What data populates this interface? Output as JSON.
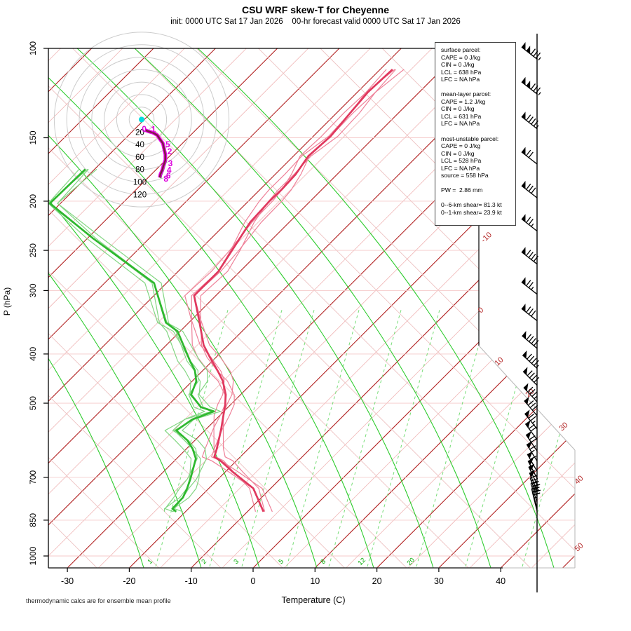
{
  "header": {
    "title": "CSU WRF skew-T for Cheyenne",
    "subtitle": "init: 0000 UTC Sat 17 Jan 2026    00-hr forecast valid 0000 UTC Sat 17 Jan 2026"
  },
  "footer": {
    "note": "thermodynamic calcs are for ensemble mean profile",
    "xlabel": "Temperature (C)"
  },
  "axes": {
    "ylabel": "P (hPa)",
    "pressure_ticks": [
      100,
      150,
      200,
      250,
      300,
      400,
      500,
      700,
      850,
      1000
    ],
    "temp_ticks": [
      -30,
      -20,
      -10,
      0,
      10,
      20,
      30,
      40
    ],
    "isotherm_edge_labels": [
      "-10",
      "0",
      "10",
      "20",
      "30",
      "40",
      "50"
    ],
    "mixing_ratio_labels": [
      "1",
      "2",
      "3",
      "5",
      "8",
      "12",
      "20"
    ]
  },
  "parcel_info": {
    "lines": [
      "surface parcel:",
      "CAPE = 0 J/kg",
      "CIN = 0 J/kg",
      "LCL = 638 hPa",
      "LFC = NA hPa",
      "",
      "mean-layer parcel:",
      "CAPE = 1.2 J/kg",
      "CIN = 0 J/kg",
      "LCL = 631 hPa",
      "LFC = NA hPa",
      "",
      "most-unstable parcel:",
      "CAPE = 0 J/kg",
      "CIN = 0 J/kg",
      "LCL = 528 hPa",
      "LFC = NA hPa",
      "source = 558 hPa",
      "",
      "PW =  2.86 mm",
      "",
      "0--6-km shear= 81.3 kt",
      "0--1-km shear= 23.9 kt"
    ]
  },
  "colors": {
    "isotherm": "#b22222",
    "isotherm_minor": "#f0b6b6",
    "dry_adiabat": "#edc2c2",
    "pressure_line": "#f5caca",
    "moist_adiabat": "#2ecc2e",
    "mixing_ratio": "#77dd77",
    "mixing_label": "#00aa00",
    "temperature": "#e0385e",
    "temperature_member": "#ee8098",
    "dewpoint": "#2eb82e",
    "dewpoint_member": "#82d682",
    "hodograph_ring": "#cccccc",
    "hodograph_trace": "#e800e8",
    "hodograph_core": "#7a1f3d",
    "hodograph_label": "#dd00dd",
    "origin_dot": "#00dddd",
    "barb": "#000000",
    "border": "#000000",
    "border_ext": "#bbbbbb"
  },
  "chart_data": {
    "type": "line",
    "subtype": "skew-T log-P sounding",
    "title": "CSU WRF skew-T for Cheyenne",
    "xlabel": "Temperature (C)",
    "ylabel": "P (hPa)",
    "x_range_c": [
      -38,
      46
    ],
    "pressure_range_hpa": [
      100,
      1050
    ],
    "ensemble_members": 5,
    "series": [
      {
        "name": "temperature",
        "units": [
          "hPa",
          "C"
        ],
        "points": [
          [
            110,
            -58
          ],
          [
            122,
            -58.3
          ],
          [
            134,
            -57.8
          ],
          [
            149,
            -57.2
          ],
          [
            163,
            -57.6
          ],
          [
            177,
            -56.7
          ],
          [
            190,
            -56.5
          ],
          [
            200,
            -56.6
          ],
          [
            220,
            -56.3
          ],
          [
            250,
            -54.7
          ],
          [
            275,
            -53.5
          ],
          [
            307,
            -53.5
          ],
          [
            341,
            -49
          ],
          [
            384,
            -44
          ],
          [
            406,
            -41
          ],
          [
            433,
            -37.4
          ],
          [
            452,
            -35.1
          ],
          [
            481,
            -32.4
          ],
          [
            503,
            -30.9
          ],
          [
            529,
            -29.4
          ],
          [
            562,
            -27.6
          ],
          [
            615,
            -25.1
          ],
          [
            638,
            -24.2
          ],
          [
            649,
            -22.6
          ],
          [
            682,
            -18.9
          ],
          [
            736,
            -12.8
          ],
          [
            818,
            -7.4
          ]
        ]
      },
      {
        "name": "dewpoint",
        "units": [
          "hPa",
          "C"
        ],
        "points": [
          [
            173,
            -91.5
          ],
          [
            202,
            -91.7
          ],
          [
            237,
            -79
          ],
          [
            290,
            -62
          ],
          [
            347,
            -53.7
          ],
          [
            361,
            -50.4
          ],
          [
            413,
            -43.6
          ],
          [
            431,
            -41.3
          ],
          [
            453,
            -39.3
          ],
          [
            481,
            -38
          ],
          [
            509,
            -34.4
          ],
          [
            519,
            -31.6
          ],
          [
            538,
            -33.8
          ],
          [
            566,
            -34.6
          ],
          [
            592,
            -31.2
          ],
          [
            615,
            -29
          ],
          [
            643,
            -26.9
          ],
          [
            705,
            -24.5
          ],
          [
            736,
            -23.5
          ],
          [
            767,
            -22.7
          ],
          [
            807,
            -22.6
          ],
          [
            818,
            -21.5
          ]
        ]
      }
    ],
    "hodograph": {
      "ring_interval_kt": 20,
      "ring_labels": [
        "20",
        "40",
        "60",
        "80",
        "100",
        "120"
      ],
      "rings_kt": [
        20,
        40,
        60,
        80,
        100,
        120,
        140
      ],
      "trace_uv_kt": [
        [
          6,
          -17
        ],
        [
          11,
          -19
        ],
        [
          18,
          -21
        ],
        [
          25,
          -25
        ],
        [
          29,
          -31
        ],
        [
          34,
          -38
        ],
        [
          36,
          -47
        ],
        [
          38,
          -56
        ],
        [
          38,
          -65
        ],
        [
          35,
          -74
        ],
        [
          33,
          -81
        ],
        [
          30,
          -88
        ],
        [
          29,
          -93
        ]
      ],
      "height_labels": [
        {
          "km": "0",
          "uv": [
            4,
            -15
          ]
        },
        {
          "km": "1",
          "uv": [
            19,
            -16
          ]
        },
        {
          "km": "5",
          "uv": [
            42,
            -40
          ]
        },
        {
          "km": "2",
          "uv": [
            45,
            -51
          ]
        },
        {
          "km": "3",
          "uv": [
            46,
            -70
          ]
        },
        {
          "km": "4",
          "uv": [
            44,
            -81
          ]
        },
        {
          "km": "6",
          "uv": [
            43,
            -90
          ]
        },
        {
          "km": "8",
          "uv": [
            39,
            -95
          ]
        }
      ]
    },
    "wind_barbs": {
      "units": [
        "hPa",
        "kt"
      ],
      "levels": [
        [
          105,
          135
        ],
        [
          123,
          135
        ],
        [
          144,
          95
        ],
        [
          169,
          70
        ],
        [
          197,
          80
        ],
        [
          229,
          75
        ],
        [
          266,
          90
        ],
        [
          305,
          75
        ],
        [
          344,
          80
        ],
        [
          390,
          90
        ],
        [
          427,
          95
        ],
        [
          461,
          90
        ],
        [
          497,
          85
        ],
        [
          529,
          80
        ],
        [
          562,
          75
        ],
        [
          590,
          70
        ],
        [
          621,
          70
        ],
        [
          650,
          65
        ],
        [
          681,
          60
        ],
        [
          703,
          55
        ],
        [
          723,
          55
        ],
        [
          744,
          50
        ],
        [
          763,
          45
        ],
        [
          783,
          40
        ],
        [
          803,
          30
        ],
        [
          815,
          25
        ]
      ]
    }
  }
}
